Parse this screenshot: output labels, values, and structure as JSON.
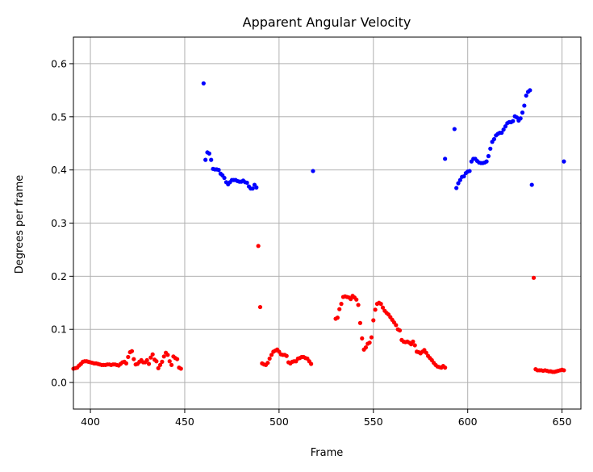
{
  "chart_data": {
    "type": "scatter",
    "title": "Apparent Angular Velocity",
    "xlabel": "Frame",
    "ylabel": "Degrees per frame",
    "xlim": [
      391,
      660
    ],
    "ylim": [
      -0.05,
      0.65
    ],
    "xticks": [
      400,
      450,
      500,
      550,
      600,
      650
    ],
    "yticks": [
      0.0,
      0.1,
      0.2,
      0.3,
      0.4,
      0.5,
      0.6
    ],
    "xtick_labels": [
      "400",
      "450",
      "500",
      "550",
      "600",
      "650"
    ],
    "ytick_labels": [
      "0.0",
      "0.1",
      "0.2",
      "0.3",
      "0.4",
      "0.5",
      "0.6"
    ],
    "grid": true,
    "series": [
      {
        "color": "#0000ff",
        "points": [
          [
            460,
            0.563
          ],
          [
            461,
            0.419
          ],
          [
            462,
            0.433
          ],
          [
            463,
            0.431
          ],
          [
            464,
            0.419
          ],
          [
            465,
            0.402
          ],
          [
            466,
            0.401
          ],
          [
            467,
            0.401
          ],
          [
            468,
            0.4
          ],
          [
            469,
            0.393
          ],
          [
            470,
            0.39
          ],
          [
            471,
            0.385
          ],
          [
            472,
            0.377
          ],
          [
            473,
            0.373
          ],
          [
            474,
            0.377
          ],
          [
            475,
            0.381
          ],
          [
            476,
            0.381
          ],
          [
            477,
            0.381
          ],
          [
            478,
            0.379
          ],
          [
            479,
            0.378
          ],
          [
            480,
            0.378
          ],
          [
            481,
            0.38
          ],
          [
            482,
            0.377
          ],
          [
            483,
            0.376
          ],
          [
            484,
            0.369
          ],
          [
            485,
            0.365
          ],
          [
            486,
            0.365
          ],
          [
            487,
            0.372
          ],
          [
            488,
            0.367
          ],
          [
            518,
            0.398
          ],
          [
            588,
            0.421
          ],
          [
            593,
            0.477
          ],
          [
            594,
            0.366
          ],
          [
            595,
            0.375
          ],
          [
            596,
            0.381
          ],
          [
            597,
            0.387
          ],
          [
            598,
            0.388
          ],
          [
            599,
            0.394
          ],
          [
            600,
            0.397
          ],
          [
            601,
            0.398
          ],
          [
            602,
            0.416
          ],
          [
            603,
            0.421
          ],
          [
            604,
            0.421
          ],
          [
            605,
            0.417
          ],
          [
            606,
            0.414
          ],
          [
            607,
            0.413
          ],
          [
            608,
            0.413
          ],
          [
            609,
            0.414
          ],
          [
            610,
            0.416
          ],
          [
            611,
            0.426
          ],
          [
            612,
            0.44
          ],
          [
            613,
            0.453
          ],
          [
            614,
            0.458
          ],
          [
            615,
            0.465
          ],
          [
            616,
            0.468
          ],
          [
            617,
            0.47
          ],
          [
            618,
            0.47
          ],
          [
            619,
            0.476
          ],
          [
            620,
            0.482
          ],
          [
            621,
            0.488
          ],
          [
            622,
            0.49
          ],
          [
            623,
            0.49
          ],
          [
            624,
            0.492
          ],
          [
            625,
            0.501
          ],
          [
            626,
            0.499
          ],
          [
            627,
            0.493
          ],
          [
            628,
            0.497
          ],
          [
            629,
            0.508
          ],
          [
            630,
            0.521
          ],
          [
            631,
            0.54
          ],
          [
            632,
            0.547
          ],
          [
            633,
            0.55
          ],
          [
            634,
            0.372
          ],
          [
            651,
            0.416
          ]
        ]
      },
      {
        "color": "#ff0000",
        "points": [
          [
            391,
            0.026
          ],
          [
            392,
            0.027
          ],
          [
            393,
            0.028
          ],
          [
            394,
            0.032
          ],
          [
            395,
            0.035
          ],
          [
            396,
            0.039
          ],
          [
            397,
            0.04
          ],
          [
            398,
            0.04
          ],
          [
            399,
            0.039
          ],
          [
            400,
            0.038
          ],
          [
            401,
            0.037
          ],
          [
            402,
            0.036
          ],
          [
            403,
            0.036
          ],
          [
            404,
            0.035
          ],
          [
            405,
            0.034
          ],
          [
            406,
            0.033
          ],
          [
            407,
            0.033
          ],
          [
            408,
            0.033
          ],
          [
            409,
            0.034
          ],
          [
            410,
            0.034
          ],
          [
            411,
            0.033
          ],
          [
            412,
            0.034
          ],
          [
            413,
            0.034
          ],
          [
            414,
            0.033
          ],
          [
            415,
            0.032
          ],
          [
            416,
            0.035
          ],
          [
            417,
            0.038
          ],
          [
            418,
            0.039
          ],
          [
            419,
            0.036
          ],
          [
            420,
            0.048
          ],
          [
            421,
            0.057
          ],
          [
            422,
            0.059
          ],
          [
            423,
            0.044
          ],
          [
            424,
            0.034
          ],
          [
            425,
            0.035
          ],
          [
            426,
            0.039
          ],
          [
            427,
            0.042
          ],
          [
            428,
            0.038
          ],
          [
            429,
            0.038
          ],
          [
            430,
            0.042
          ],
          [
            431,
            0.035
          ],
          [
            432,
            0.047
          ],
          [
            433,
            0.053
          ],
          [
            434,
            0.043
          ],
          [
            435,
            0.04
          ],
          [
            436,
            0.027
          ],
          [
            437,
            0.033
          ],
          [
            438,
            0.039
          ],
          [
            439,
            0.049
          ],
          [
            440,
            0.056
          ],
          [
            441,
            0.052
          ],
          [
            442,
            0.04
          ],
          [
            443,
            0.033
          ],
          [
            444,
            0.049
          ],
          [
            445,
            0.046
          ],
          [
            446,
            0.044
          ],
          [
            447,
            0.028
          ],
          [
            448,
            0.026
          ],
          [
            489,
            0.257
          ],
          [
            490,
            0.142
          ],
          [
            491,
            0.036
          ],
          [
            492,
            0.034
          ],
          [
            493,
            0.033
          ],
          [
            494,
            0.037
          ],
          [
            495,
            0.045
          ],
          [
            496,
            0.052
          ],
          [
            497,
            0.058
          ],
          [
            498,
            0.06
          ],
          [
            499,
            0.062
          ],
          [
            500,
            0.058
          ],
          [
            501,
            0.053
          ],
          [
            502,
            0.052
          ],
          [
            503,
            0.052
          ],
          [
            504,
            0.05
          ],
          [
            505,
            0.038
          ],
          [
            506,
            0.036
          ],
          [
            507,
            0.039
          ],
          [
            508,
            0.04
          ],
          [
            509,
            0.04
          ],
          [
            510,
            0.045
          ],
          [
            511,
            0.046
          ],
          [
            512,
            0.048
          ],
          [
            513,
            0.048
          ],
          [
            514,
            0.046
          ],
          [
            515,
            0.045
          ],
          [
            516,
            0.04
          ],
          [
            517,
            0.035
          ],
          [
            530,
            0.12
          ],
          [
            531,
            0.122
          ],
          [
            532,
            0.138
          ],
          [
            533,
            0.148
          ],
          [
            534,
            0.161
          ],
          [
            535,
            0.162
          ],
          [
            536,
            0.161
          ],
          [
            537,
            0.16
          ],
          [
            538,
            0.157
          ],
          [
            539,
            0.163
          ],
          [
            540,
            0.16
          ],
          [
            541,
            0.156
          ],
          [
            542,
            0.146
          ],
          [
            543,
            0.112
          ],
          [
            544,
            0.083
          ],
          [
            545,
            0.062
          ],
          [
            546,
            0.066
          ],
          [
            547,
            0.073
          ],
          [
            548,
            0.075
          ],
          [
            549,
            0.085
          ],
          [
            550,
            0.117
          ],
          [
            551,
            0.137
          ],
          [
            552,
            0.148
          ],
          [
            553,
            0.15
          ],
          [
            554,
            0.148
          ],
          [
            555,
            0.141
          ],
          [
            556,
            0.135
          ],
          [
            557,
            0.131
          ],
          [
            558,
            0.128
          ],
          [
            559,
            0.123
          ],
          [
            560,
            0.118
          ],
          [
            561,
            0.113
          ],
          [
            562,
            0.108
          ],
          [
            563,
            0.1
          ],
          [
            564,
            0.098
          ],
          [
            565,
            0.08
          ],
          [
            566,
            0.077
          ],
          [
            567,
            0.076
          ],
          [
            568,
            0.077
          ],
          [
            569,
            0.075
          ],
          [
            570,
            0.072
          ],
          [
            571,
            0.077
          ],
          [
            572,
            0.07
          ],
          [
            573,
            0.058
          ],
          [
            574,
            0.057
          ],
          [
            575,
            0.055
          ],
          [
            576,
            0.058
          ],
          [
            577,
            0.061
          ],
          [
            578,
            0.056
          ],
          [
            579,
            0.05
          ],
          [
            580,
            0.046
          ],
          [
            581,
            0.042
          ],
          [
            582,
            0.037
          ],
          [
            583,
            0.033
          ],
          [
            584,
            0.03
          ],
          [
            585,
            0.029
          ],
          [
            586,
            0.028
          ],
          [
            587,
            0.031
          ],
          [
            588,
            0.028
          ],
          [
            635,
            0.197
          ],
          [
            636,
            0.025
          ],
          [
            637,
            0.023
          ],
          [
            638,
            0.023
          ],
          [
            639,
            0.023
          ],
          [
            640,
            0.022
          ],
          [
            641,
            0.023
          ],
          [
            642,
            0.022
          ],
          [
            643,
            0.021
          ],
          [
            644,
            0.021
          ],
          [
            645,
            0.02
          ],
          [
            646,
            0.02
          ],
          [
            647,
            0.021
          ],
          [
            648,
            0.022
          ],
          [
            649,
            0.023
          ],
          [
            650,
            0.024
          ],
          [
            651,
            0.023
          ]
        ]
      }
    ]
  }
}
